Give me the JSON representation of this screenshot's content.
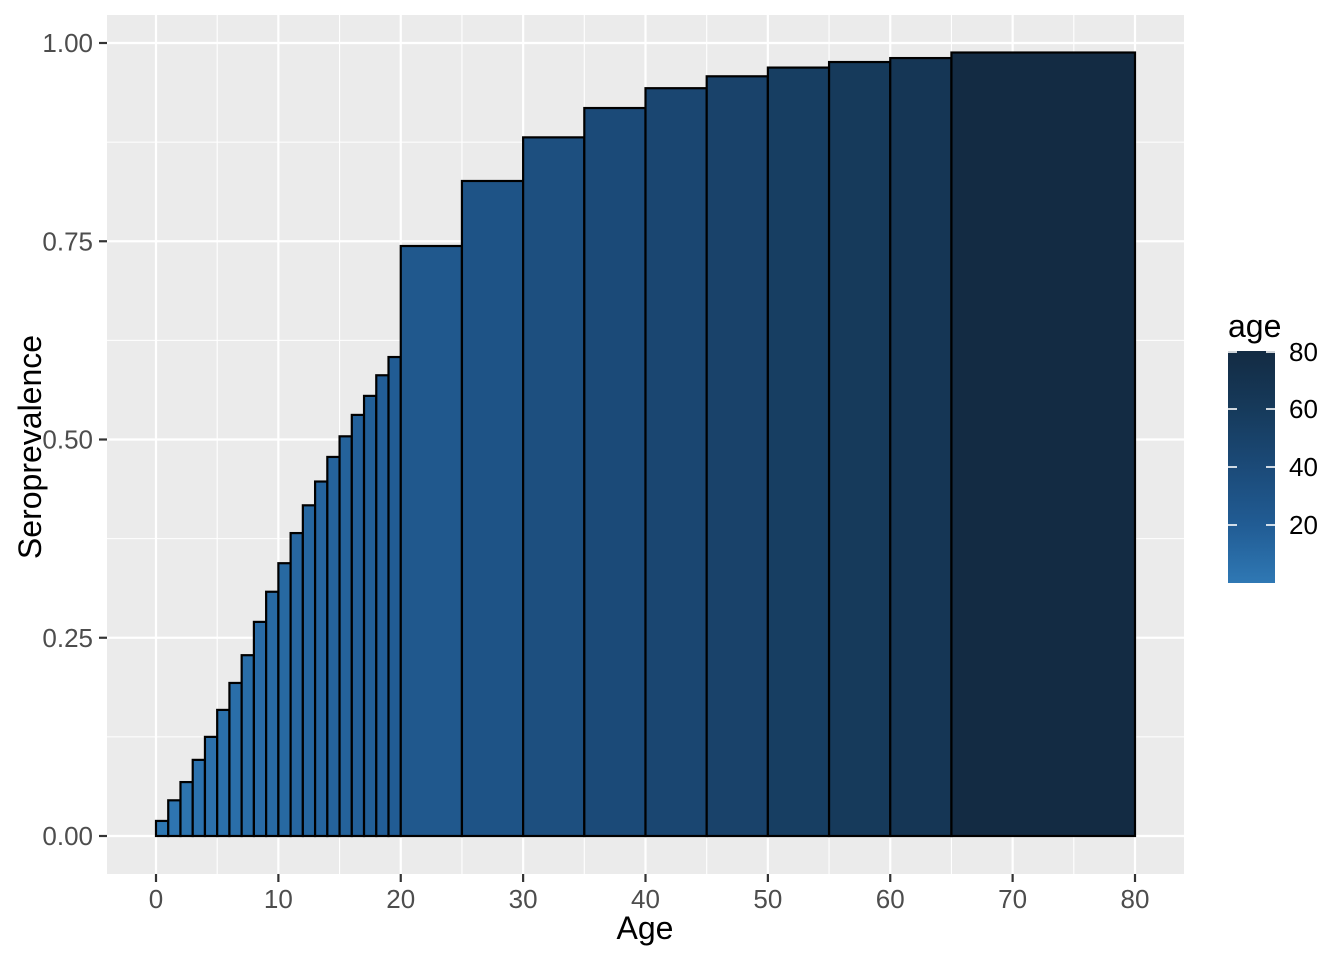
{
  "figure": {
    "background": "#FFFFFF"
  },
  "chart_data": {
    "type": "bar",
    "title": "",
    "xlabel": "Age",
    "ylabel": "Seroprevalence",
    "xlim": [
      0,
      80
    ],
    "ylim": [
      0,
      1
    ],
    "grid": true,
    "legend_position": "right",
    "x_ticks": [
      {
        "value": 0,
        "label": "0"
      },
      {
        "value": 10,
        "label": "10"
      },
      {
        "value": 20,
        "label": "20"
      },
      {
        "value": 30,
        "label": "30"
      },
      {
        "value": 40,
        "label": "40"
      },
      {
        "value": 50,
        "label": "50"
      },
      {
        "value": 60,
        "label": "60"
      },
      {
        "value": 70,
        "label": "70"
      },
      {
        "value": 80,
        "label": "80"
      }
    ],
    "x_minor_ticks": [
      5,
      15,
      25,
      35,
      45,
      55,
      65,
      75
    ],
    "y_ticks": [
      {
        "value": 0,
        "label": "0.00"
      },
      {
        "value": 0.25,
        "label": "0.25"
      },
      {
        "value": 0.5,
        "label": "0.50"
      },
      {
        "value": 0.75,
        "label": "0.75"
      },
      {
        "value": 1,
        "label": "1.00"
      }
    ],
    "y_minor_ticks": [
      0.125,
      0.375,
      0.625,
      0.875
    ],
    "legend": {
      "title": "age",
      "range": [
        0,
        80
      ],
      "ticks": [
        {
          "value": 20,
          "label": "20"
        },
        {
          "value": 40,
          "label": "40"
        },
        {
          "value": 60,
          "label": "60"
        },
        {
          "value": 80,
          "label": "80"
        }
      ]
    },
    "colors": {
      "panel_bg": "#EBEBEB",
      "grid": "#FFFFFF",
      "bar_stroke": "#000000",
      "tick_mark": "#333333",
      "tick_label": "#4D4D4D",
      "axis_title": "#000000",
      "fill_gradient_stops": [
        {
          "age": 0,
          "color": "#2F78B4"
        },
        {
          "age": 20,
          "color": "#215C94"
        },
        {
          "age": 40,
          "color": "#1B4A78"
        },
        {
          "age": 60,
          "color": "#163A5B"
        },
        {
          "age": 80,
          "color": "#132B43"
        }
      ]
    },
    "bars": [
      {
        "from": 0,
        "to": 1,
        "value": 0.019
      },
      {
        "from": 1,
        "to": 2,
        "value": 0.045
      },
      {
        "from": 2,
        "to": 3,
        "value": 0.068
      },
      {
        "from": 3,
        "to": 4,
        "value": 0.096
      },
      {
        "from": 4,
        "to": 5,
        "value": 0.125
      },
      {
        "from": 5,
        "to": 6,
        "value": 0.159
      },
      {
        "from": 6,
        "to": 7,
        "value": 0.193
      },
      {
        "from": 7,
        "to": 8,
        "value": 0.228
      },
      {
        "from": 8,
        "to": 9,
        "value": 0.27
      },
      {
        "from": 9,
        "to": 10,
        "value": 0.308
      },
      {
        "from": 10,
        "to": 11,
        "value": 0.344
      },
      {
        "from": 11,
        "to": 12,
        "value": 0.382
      },
      {
        "from": 12,
        "to": 13,
        "value": 0.417
      },
      {
        "from": 13,
        "to": 14,
        "value": 0.447
      },
      {
        "from": 14,
        "to": 15,
        "value": 0.478
      },
      {
        "from": 15,
        "to": 16,
        "value": 0.504
      },
      {
        "from": 16,
        "to": 17,
        "value": 0.531
      },
      {
        "from": 17,
        "to": 18,
        "value": 0.555
      },
      {
        "from": 18,
        "to": 19,
        "value": 0.581
      },
      {
        "from": 19,
        "to": 20,
        "value": 0.604
      },
      {
        "from": 20,
        "to": 25,
        "value": 0.744
      },
      {
        "from": 25,
        "to": 30,
        "value": 0.826
      },
      {
        "from": 30,
        "to": 35,
        "value": 0.881
      },
      {
        "from": 35,
        "to": 40,
        "value": 0.918
      },
      {
        "from": 40,
        "to": 45,
        "value": 0.943
      },
      {
        "from": 45,
        "to": 50,
        "value": 0.958
      },
      {
        "from": 50,
        "to": 55,
        "value": 0.969
      },
      {
        "from": 55,
        "to": 60,
        "value": 0.976
      },
      {
        "from": 60,
        "to": 65,
        "value": 0.981
      },
      {
        "from": 65,
        "to": 80,
        "value": 0.988
      }
    ]
  }
}
